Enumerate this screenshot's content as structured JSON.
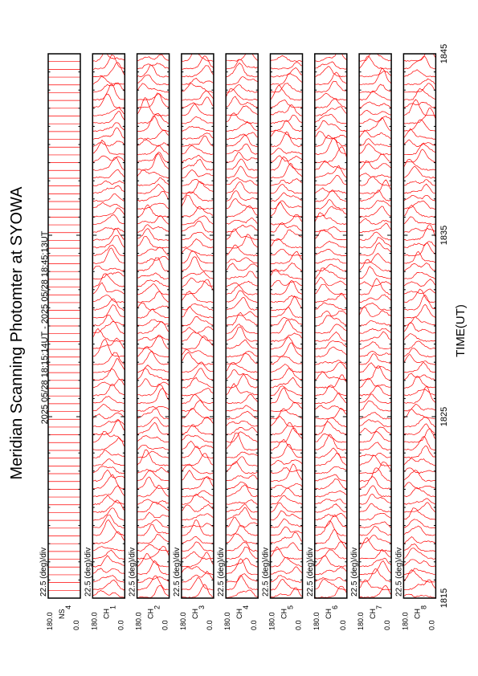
{
  "chart_data": {
    "type": "line",
    "title": "Meridian Scanning Photomter at SYOWA",
    "subtitle": "2025 05/28 18:15:14UT - 2025 05/28 18:45:13UT",
    "xlabel": "TIME(UT)",
    "x_ticks": [
      "1815",
      "1825",
      "1835",
      "1845"
    ],
    "xlim": [
      1815,
      1845
    ],
    "scale_label": "22.5 (deg)/div",
    "ylim": [
      0.0,
      180.0
    ],
    "y_tick_top": "180.0",
    "y_tick_bottom": "0.0",
    "grid": false,
    "line_color": "#ff0000",
    "panels": [
      {
        "label": "4 NS",
        "kind": "ns",
        "channel_label": "NS",
        "row_label": "4"
      },
      {
        "label": "1 CH",
        "kind": "ch",
        "channel_label": "CH",
        "row_label": "1"
      },
      {
        "label": "2 CH",
        "kind": "ch",
        "channel_label": "CH",
        "row_label": "2"
      },
      {
        "label": "3 CH",
        "kind": "ch",
        "channel_label": "CH",
        "row_label": "3"
      },
      {
        "label": "4 CH",
        "kind": "ch",
        "channel_label": "CH",
        "row_label": "4"
      },
      {
        "label": "5 CH",
        "kind": "ch",
        "channel_label": "CH",
        "row_label": "5"
      },
      {
        "label": "6 CH",
        "kind": "ch",
        "channel_label": "CH",
        "row_label": "6"
      },
      {
        "label": "7 CH",
        "kind": "ch",
        "channel_label": "CH",
        "row_label": "7"
      },
      {
        "label": "8 CH",
        "kind": "ch",
        "channel_label": "CH",
        "row_label": "8"
      }
    ]
  }
}
